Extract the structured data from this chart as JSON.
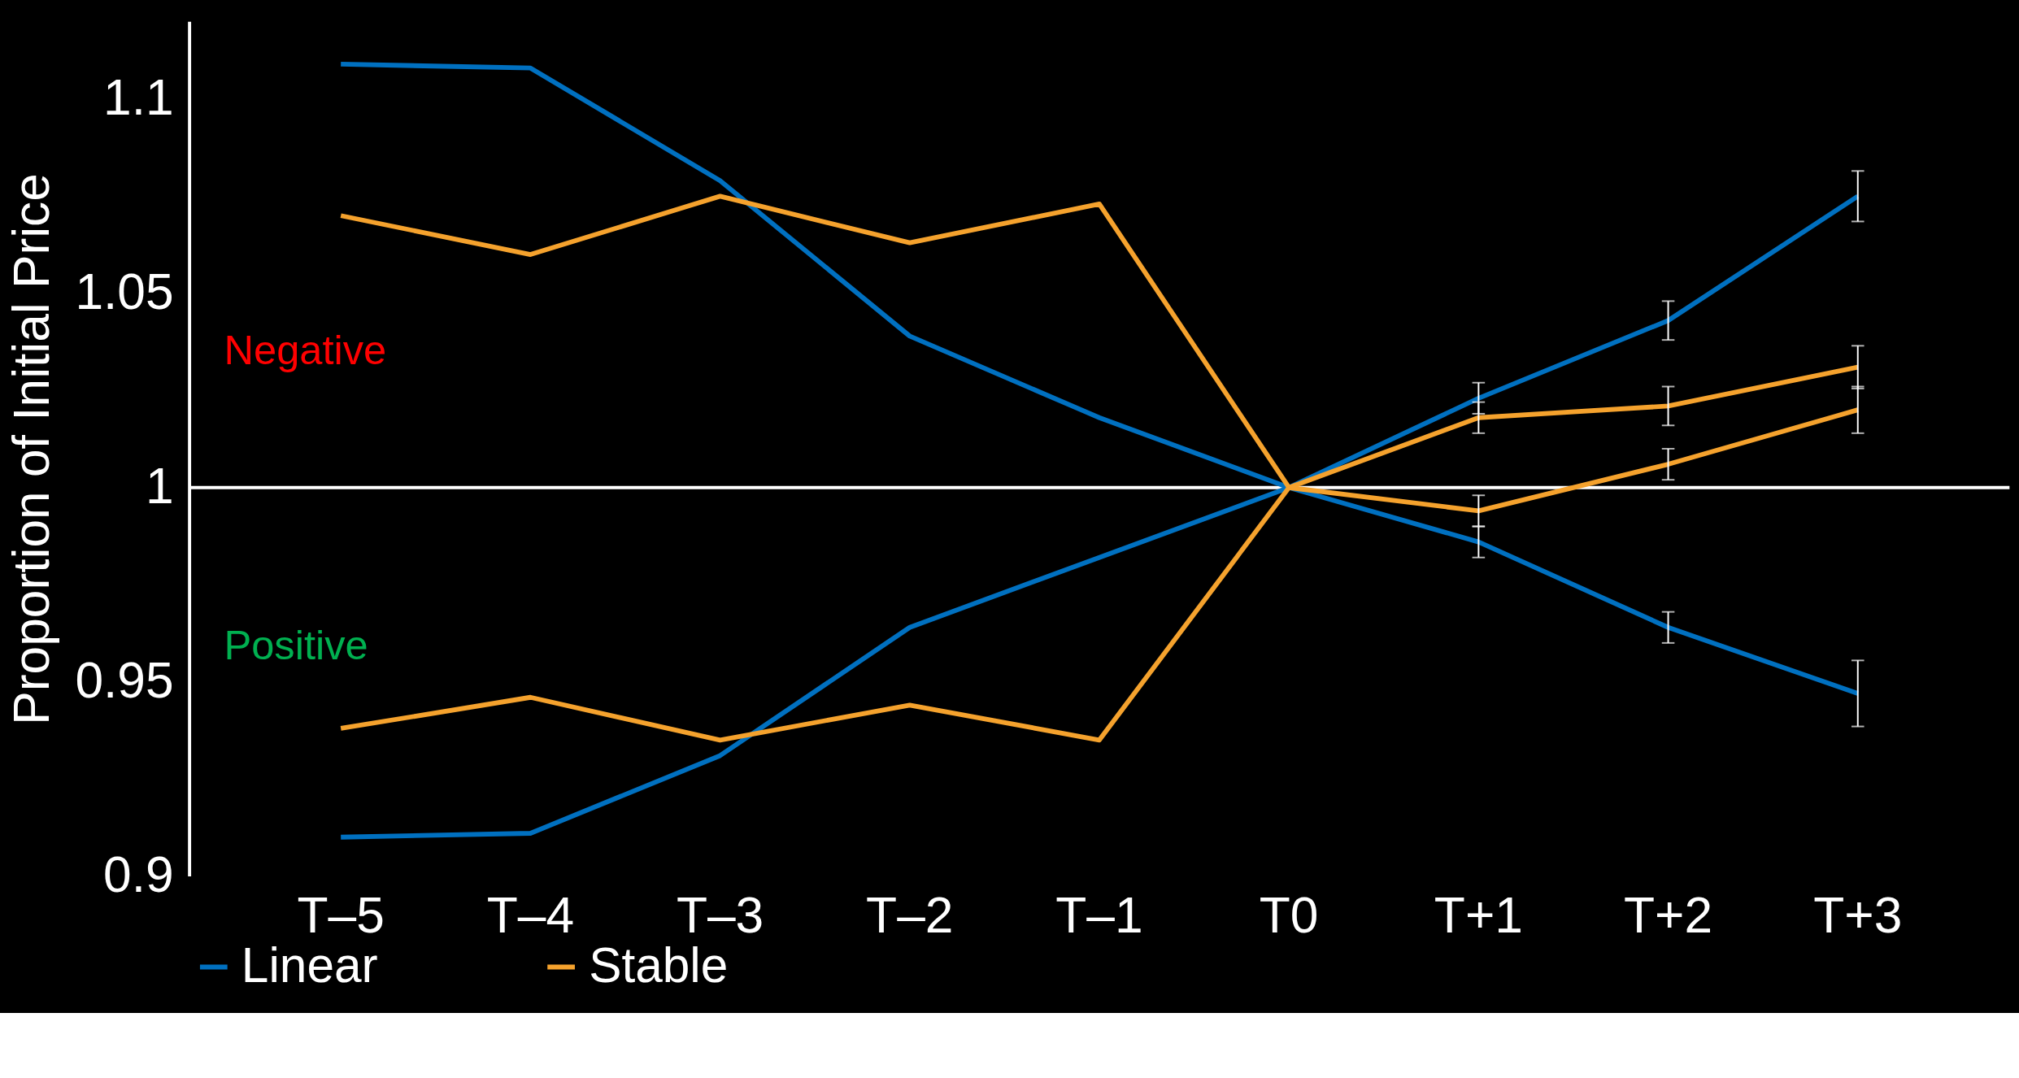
{
  "chart_data": {
    "type": "line",
    "ylabel": "Proportion of Initial Price",
    "categories": [
      "T–5",
      "T–4",
      "T–3",
      "T–2",
      "T–1",
      "T0",
      "T+1",
      "T+2",
      "T+3"
    ],
    "series": [
      {
        "name": "Linear",
        "color": "#0070c0",
        "values": [
          1.109,
          1.108,
          1.079,
          1.039,
          1.018,
          1.0,
          1.023,
          1.043,
          1.075
        ],
        "errors": [
          null,
          null,
          null,
          null,
          null,
          null,
          0.004,
          0.005,
          0.0065
        ]
      },
      {
        "color": "#0070c0",
        "values": [
          0.91,
          0.911,
          0.931,
          0.964,
          0.982,
          1.0,
          0.986,
          0.964,
          0.947
        ],
        "errors": [
          null,
          null,
          null,
          null,
          null,
          null,
          0.004,
          0.004,
          0.0085
        ]
      },
      {
        "name": "Stable",
        "color": "#f5a22d",
        "values": [
          1.07,
          1.06,
          1.075,
          1.063,
          1.073,
          1.0,
          1.018,
          1.021,
          1.031
        ],
        "errors": [
          null,
          null,
          null,
          null,
          null,
          null,
          0.004,
          0.005,
          0.0055
        ]
      },
      {
        "color": "#f5a22d",
        "values": [
          0.938,
          0.946,
          0.935,
          0.944,
          0.935,
          1.0,
          0.994,
          1.006,
          1.02
        ],
        "errors": [
          null,
          null,
          null,
          null,
          null,
          null,
          0.004,
          0.004,
          0.006
        ]
      }
    ],
    "ylim": [
      0.9,
      1.12
    ],
    "yticks": [
      0.9,
      0.95,
      1,
      1.05,
      1.1
    ],
    "grid": false,
    "legend": "bottom",
    "marker": "none",
    "line_style": "solid",
    "ref_lines": [
      {
        "axis": "y",
        "value": 1,
        "color": "#ffffff"
      }
    ],
    "annotations": [
      "Negative",
      "Positive"
    ]
  }
}
